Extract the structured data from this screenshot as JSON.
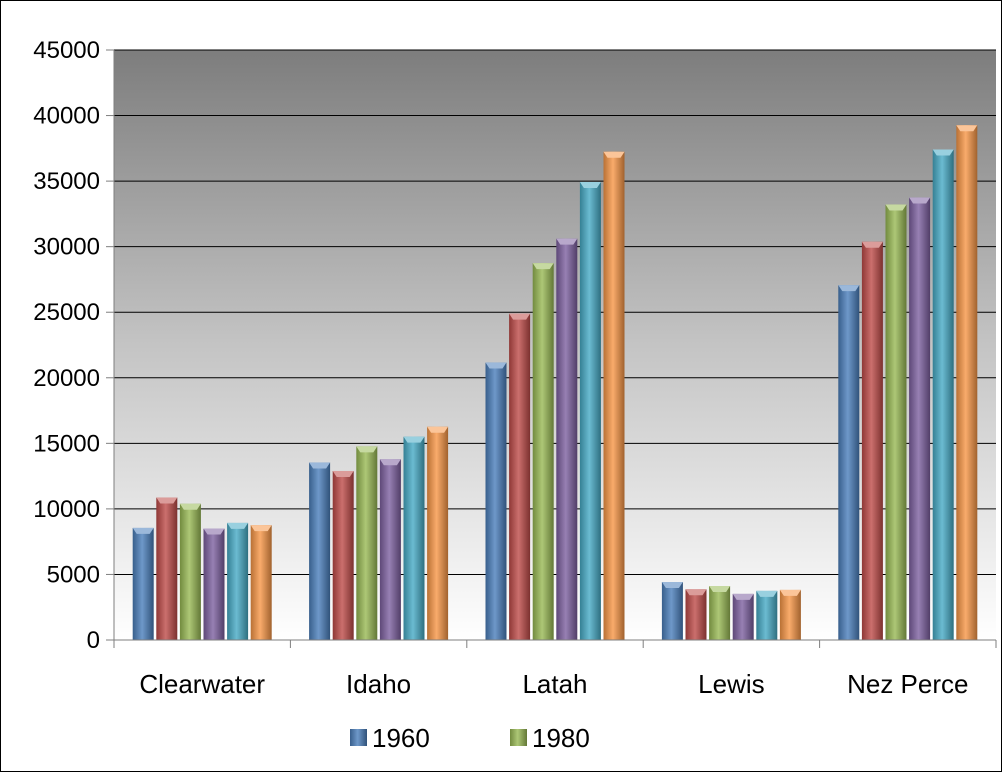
{
  "chart_data": {
    "type": "bar",
    "categories": [
      "Clearwater",
      "Idaho",
      "Latah",
      "Lewis",
      "Nez Perce"
    ],
    "series": [
      {
        "name": "1960",
        "values": [
          8548,
          13542,
          21170,
          4423,
          27066
        ]
      },
      {
        "values": [
          10871,
          12891,
          24891,
          3867,
          30376
        ]
      },
      {
        "name": "1980",
        "values": [
          10390,
          14769,
          28749,
          4118,
          33220
        ]
      },
      {
        "values": [
          8505,
          13783,
          30617,
          3516,
          33754
        ]
      },
      {
        "values": [
          8930,
          15511,
          34935,
          3747,
          37410
        ]
      },
      {
        "values": [
          8761,
          16267,
          37244,
          3821,
          39265
        ]
      }
    ],
    "colors": [
      "#4a7ebb",
      "#be4b48",
      "#98b954",
      "#7d60a0",
      "#46aac5",
      "#f79646"
    ],
    "ylim": [
      0,
      45000
    ],
    "yticks": [
      "0",
      "5000",
      "10000",
      "15000",
      "20000",
      "25000",
      "30000",
      "35000",
      "40000",
      "45000"
    ],
    "grid": true,
    "legend_position": "bottom",
    "plot_background": "gradient gray"
  }
}
